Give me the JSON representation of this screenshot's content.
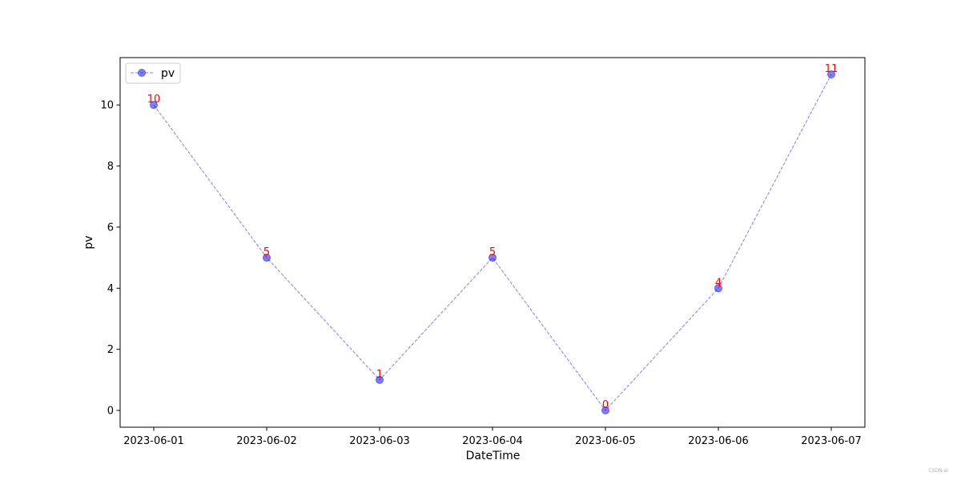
{
  "chart_data": {
    "type": "line",
    "x": [
      "2023-06-01",
      "2023-06-02",
      "2023-06-03",
      "2023-06-04",
      "2023-06-05",
      "2023-06-06",
      "2023-06-07"
    ],
    "series": [
      {
        "name": "pv",
        "values": [
          10,
          5,
          1,
          5,
          0,
          4,
          11
        ],
        "color": "#0000ff",
        "line_style": "dashed",
        "marker": "circle",
        "alpha": 0.5
      }
    ],
    "data_labels": [
      "10",
      "5",
      "1",
      "5",
      "0",
      "4",
      "11"
    ],
    "data_label_color": "#ff0000",
    "xlabel": "DateTime",
    "ylabel": "pv",
    "ylim": [
      -0.55,
      11.55
    ],
    "yticks": [
      0,
      2,
      4,
      6,
      8,
      10
    ],
    "grid": false,
    "legend_position": "upper-left"
  },
  "watermark": "CSDN-ai"
}
